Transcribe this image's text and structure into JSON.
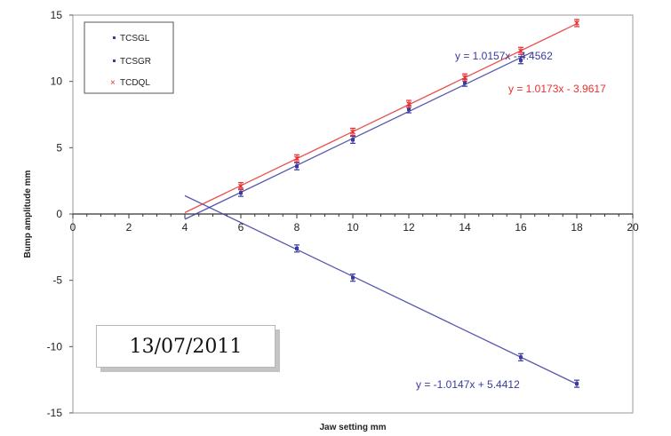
{
  "date_stamp": "13/07/2011",
  "chart_data": {
    "type": "scatter",
    "title": "",
    "xlabel": "Jaw setting mm",
    "ylabel": "Bump amplitude mm",
    "xlim": [
      0,
      20
    ],
    "ylim": [
      -15,
      15
    ],
    "xticks": [
      0,
      2,
      4,
      6,
      8,
      10,
      12,
      14,
      16,
      18,
      20
    ],
    "yticks": [
      -15,
      -10,
      -5,
      0,
      5,
      10,
      15
    ],
    "grid": false,
    "legend_position": "top-left",
    "series": [
      {
        "name": "TCSGL",
        "color": "#3a3aa0",
        "marker": "bar-errorbar",
        "points": [
          [
            6,
            1.6
          ],
          [
            8,
            3.6
          ],
          [
            10,
            5.6
          ],
          [
            12,
            7.9
          ],
          [
            14,
            9.9
          ],
          [
            16,
            11.6
          ]
        ],
        "trendline": {
          "slope": 1.0157,
          "intercept": -4.4562,
          "x_range": [
            4,
            16.4
          ],
          "label": "y = 1.0157x - 4.4562"
        }
      },
      {
        "name": "TCSGR",
        "color": "#3a3aa0",
        "marker": "bar-errorbar",
        "points": [
          [
            8,
            -2.6
          ],
          [
            10,
            -4.8
          ],
          [
            16,
            -10.8
          ],
          [
            18,
            -12.8
          ]
        ],
        "trendline": {
          "slope": -1.0147,
          "intercept": 5.4412,
          "x_range": [
            4,
            18
          ],
          "label": "y = -1.0147x + 5.4412"
        }
      },
      {
        "name": "TCDQL",
        "color": "#e83030",
        "marker": "x",
        "points": [
          [
            6,
            2.1
          ],
          [
            8,
            4.2
          ],
          [
            10,
            6.2
          ],
          [
            12,
            8.3
          ],
          [
            14,
            10.3
          ],
          [
            16,
            12.3
          ],
          [
            18,
            14.4
          ]
        ],
        "trendline": {
          "slope": 1.0173,
          "intercept": -3.9617,
          "x_range": [
            4,
            18
          ],
          "label": "y = 1.0173x - 3.9617"
        }
      }
    ]
  }
}
